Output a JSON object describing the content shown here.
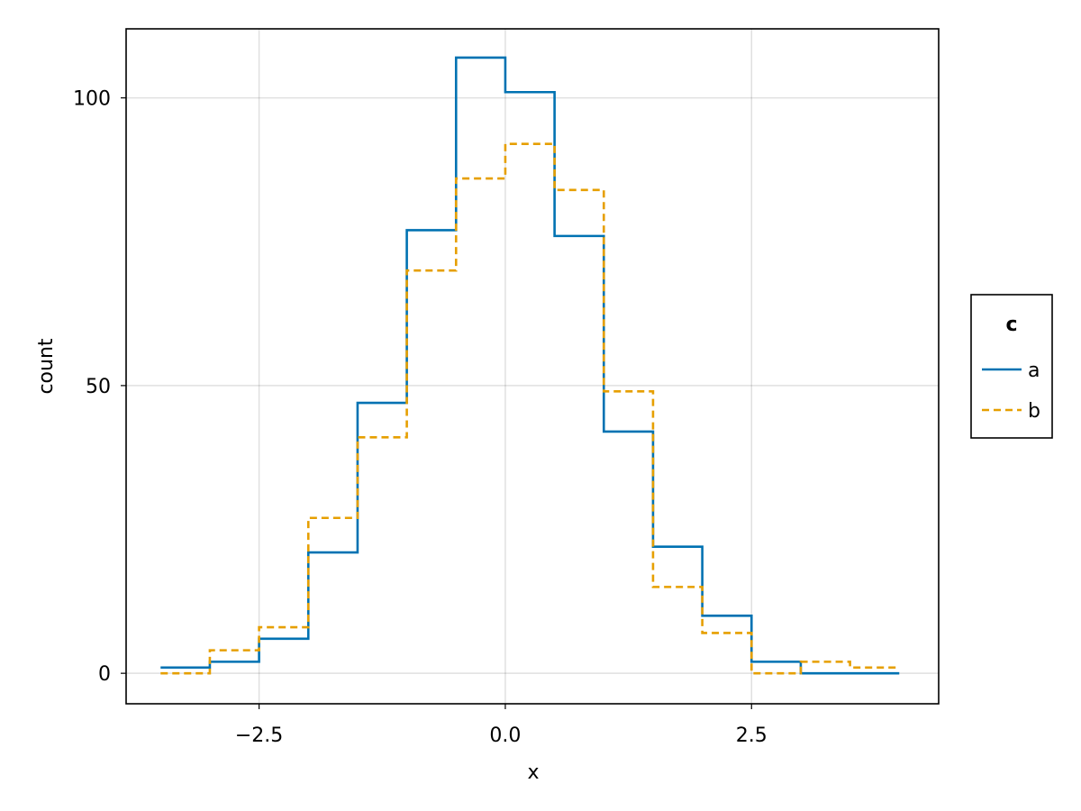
{
  "chart_data": {
    "type": "line",
    "subtype": "step-histogram",
    "xlabel": "x",
    "ylabel": "count",
    "xlim": [
      -3.85,
      4.4
    ],
    "ylim": [
      -5.3,
      112
    ],
    "xticks": [
      -2.5,
      0.0,
      2.5
    ],
    "xtick_labels": [
      "−2.5",
      "0.0",
      "2.5"
    ],
    "yticks": [
      0,
      50,
      100
    ],
    "ytick_labels": [
      "0",
      "50",
      "100"
    ],
    "grid": true,
    "bin_edges": [
      -3.5,
      -3.0,
      -2.5,
      -2.0,
      -1.5,
      -1.0,
      -0.5,
      0.0,
      0.5,
      1.0,
      1.5,
      2.0,
      2.5,
      3.0,
      3.5,
      4.0
    ],
    "legend": {
      "title": "c",
      "position": "right"
    },
    "series": [
      {
        "name": "a",
        "color": "#0072B2",
        "dash": "solid",
        "counts": [
          1,
          2,
          6,
          21,
          47,
          77,
          107,
          101,
          76,
          42,
          22,
          10,
          2,
          0,
          0
        ]
      },
      {
        "name": "b",
        "color": "#E69F00",
        "dash": "dashed",
        "counts": [
          0,
          4,
          8,
          27,
          41,
          70,
          86,
          92,
          84,
          49,
          15,
          7,
          0,
          2,
          1
        ]
      }
    ]
  }
}
